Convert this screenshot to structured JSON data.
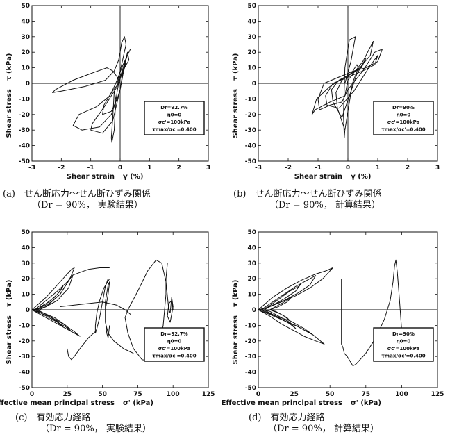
{
  "colors": {
    "ink": "#111111",
    "paper": "#ffffff"
  },
  "chart_data": [
    {
      "id": "a",
      "type": "line",
      "xlabel": "Shear strain",
      "xsym": "γ (%)",
      "ylabel": "Shear stress",
      "ysym": "τ (kPa)",
      "xlim": [
        -3,
        3
      ],
      "ylim": [
        -50,
        50
      ],
      "xticks": [
        -3,
        -2,
        -1,
        0,
        1,
        2,
        3
      ],
      "yticks": [
        -50,
        -40,
        -30,
        -20,
        -10,
        0,
        10,
        20,
        30,
        40,
        50
      ],
      "legend": [
        "Dr=92.7%",
        "η0=0",
        "σc'=100kPa",
        "τmax/σc'=0.400"
      ],
      "caption": [
        "(a)　せん断応力～せん断ひずみ関係",
        "（Dr = 90%， 実験結果）"
      ],
      "series": [
        {
          "x": [
            0,
            -0.1,
            -0.25,
            -0.45,
            -0.9,
            -1.6,
            -2.2,
            -2.3,
            -2.0,
            -1.2,
            -0.5,
            -0.2,
            -0.05,
            0.0,
            0.05,
            0.15,
            0.2,
            0.05,
            -0.1
          ],
          "y": [
            0,
            4,
            8,
            10,
            7,
            2,
            -4,
            -6,
            -5,
            -2,
            2,
            8,
            15,
            20,
            26,
            30,
            25,
            12,
            0
          ]
        },
        {
          "x": [
            -0.15,
            -0.35,
            -0.8,
            -1.4,
            -1.6,
            -1.3,
            -0.7,
            -0.3,
            -0.15,
            -0.1,
            -0.05,
            0.1,
            0.25,
            0.35,
            0.1,
            -0.15
          ],
          "y": [
            0,
            -8,
            -15,
            -20,
            -27,
            -30,
            -28,
            -20,
            -12,
            -5,
            0,
            10,
            18,
            22,
            12,
            0
          ]
        },
        {
          "x": [
            -0.1,
            -0.5,
            -0.95,
            -1.0,
            -0.6,
            -0.25,
            -0.1,
            0.0,
            0.1,
            0.25,
            0.3,
            0.0,
            -0.1
          ],
          "y": [
            -2,
            -14,
            -26,
            -30,
            -32,
            -24,
            -12,
            -4,
            8,
            20,
            15,
            5,
            -2
          ]
        },
        {
          "x": [
            -0.05,
            -0.3,
            -0.55,
            -0.6,
            -0.3,
            -0.1,
            0.0,
            0.1,
            0.2,
            0.1,
            -0.05
          ],
          "y": [
            0,
            -6,
            -14,
            -20,
            -18,
            -10,
            -4,
            6,
            14,
            8,
            0
          ]
        },
        {
          "x": [
            -0.2,
            -0.25,
            -0.3,
            -0.28,
            -0.2,
            -0.15,
            -0.2
          ],
          "y": [
            -5,
            -22,
            -35,
            -38,
            -30,
            -10,
            -5
          ]
        }
      ]
    },
    {
      "id": "b",
      "type": "line",
      "xlabel": "Shear strain",
      "xsym": "γ (%)",
      "ylabel": "Shear stress",
      "ysym": "τ (kPa)",
      "xlim": [
        -3,
        3
      ],
      "ylim": [
        -50,
        50
      ],
      "xticks": [
        -3,
        -2,
        -1,
        0,
        1,
        2,
        3
      ],
      "yticks": [
        -50,
        -40,
        -30,
        -20,
        -10,
        0,
        10,
        20,
        30,
        40,
        50
      ],
      "legend": [
        "Dr=90%",
        "η0=0",
        "σc'=100kPa",
        "τmax/σc'=0.400"
      ],
      "caption": [
        "(b)　せん断応力～せん断ひずみ関係",
        "（Dr = 90%， 計算結果）"
      ],
      "series": [
        {
          "x": [
            -0.1,
            0.1,
            0.25,
            0.05,
            -0.1,
            -0.15,
            -0.12,
            -0.1
          ],
          "y": [
            0,
            14,
            30,
            28,
            10,
            -20,
            -35,
            -30
          ]
        },
        {
          "x": [
            -0.1,
            -0.6,
            -1.1,
            -1.2,
            -1.05,
            -0.6,
            -0.1,
            0.4,
            0.75,
            0.85,
            0.5,
            0.0,
            -0.1
          ],
          "y": [
            -8,
            -12,
            -17,
            -20,
            -10,
            -2,
            4,
            10,
            18,
            27,
            14,
            2,
            -8
          ]
        },
        {
          "x": [
            -0.2,
            -0.6,
            -0.95,
            -1.0,
            -0.8,
            -0.3,
            0.2,
            0.6,
            1.0,
            1.15,
            0.9,
            0.5,
            0.0,
            -0.2
          ],
          "y": [
            -12,
            -14,
            -17,
            -10,
            0,
            4,
            8,
            10,
            14,
            22,
            20,
            8,
            -4,
            -12
          ]
        },
        {
          "x": [
            -0.3,
            -0.7,
            -0.75,
            -0.5,
            0.0,
            0.5,
            0.9,
            1.0,
            0.7,
            0.2,
            -0.3
          ],
          "y": [
            -16,
            -14,
            -8,
            0,
            4,
            8,
            12,
            18,
            10,
            -5,
            -16
          ]
        },
        {
          "x": [
            -0.2,
            -0.5,
            -0.55,
            -0.3,
            0.1,
            0.45,
            0.6,
            0.3,
            -0.2
          ],
          "y": [
            -22,
            -12,
            -4,
            2,
            6,
            10,
            16,
            6,
            -22
          ]
        },
        {
          "x": [
            -0.1,
            -0.35,
            -0.4,
            -0.2,
            0.1,
            0.3,
            0.35,
            0.15,
            -0.1
          ],
          "y": [
            -30,
            -16,
            -6,
            2,
            6,
            12,
            10,
            0,
            -30
          ]
        }
      ]
    },
    {
      "id": "c",
      "type": "line",
      "xlabel": "Effective mean principal stress",
      "xsym": "σ' (kPa)",
      "ylabel": "Shear stress",
      "ysym": "τ (kPa)",
      "xlim": [
        0,
        125
      ],
      "ylim": [
        -50,
        50
      ],
      "xticks": [
        0,
        25,
        50,
        75,
        100,
        125
      ],
      "yticks": [
        -50,
        -40,
        -30,
        -20,
        -10,
        0,
        10,
        20,
        30,
        40,
        50
      ],
      "legend": [
        "Dr=92.7%",
        "η0=0",
        "σc'=100kPa",
        "τmax/σc'=0.400"
      ],
      "caption": [
        "(c)　有効応力経路",
        "（Dr = 90%， 実験結果）"
      ],
      "series": [
        {
          "x": [
            100,
            99,
            97,
            96,
            98,
            100,
            99,
            98,
            97
          ],
          "y": [
            0,
            6,
            4,
            -4,
            -8,
            2,
            8,
            -2,
            0
          ]
        },
        {
          "x": [
            97,
            95,
            92,
            88,
            82,
            75,
            68,
            66,
            68,
            72,
            78,
            84,
            88,
            91,
            93,
            94,
            95,
            95,
            96
          ],
          "y": [
            0,
            18,
            30,
            32,
            25,
            12,
            0,
            -5,
            -15,
            -25,
            -32,
            -33,
            -28,
            -20,
            -10,
            0,
            10,
            20,
            30
          ]
        },
        {
          "x": [
            72,
            65,
            58,
            54,
            52,
            52,
            54,
            55,
            54,
            52,
            52,
            53,
            54,
            55
          ],
          "y": [
            -28,
            -25,
            -20,
            -15,
            -8,
            0,
            10,
            18,
            16,
            5,
            -5,
            -15,
            -18,
            -10
          ]
        },
        {
          "x": [
            55,
            51,
            48,
            46,
            45,
            45,
            46,
            48,
            50,
            52,
            54
          ],
          "y": [
            20,
            14,
            6,
            -2,
            -10,
            -15,
            -12,
            -5,
            5,
            15,
            20
          ]
        },
        {
          "x": [
            45,
            40,
            34,
            30,
            28,
            26,
            25
          ],
          "y": [
            -14,
            -18,
            -25,
            -30,
            -32,
            -30,
            -25
          ]
        },
        {
          "x": [
            0,
            10,
            18,
            24,
            28,
            30,
            27,
            20,
            12,
            5,
            0
          ],
          "y": [
            0,
            8,
            16,
            22,
            26,
            27,
            20,
            10,
            4,
            1,
            0
          ]
        },
        {
          "x": [
            0,
            8,
            16,
            24,
            30,
            34,
            30,
            22,
            14,
            6,
            0
          ],
          "y": [
            0,
            -4,
            -8,
            -12,
            -15,
            -17,
            -14,
            -9,
            -5,
            -2,
            0
          ]
        },
        {
          "x": [
            2,
            10,
            18,
            25,
            29,
            26,
            18,
            10,
            2
          ],
          "y": [
            0,
            6,
            12,
            18,
            22,
            14,
            6,
            2,
            0
          ]
        },
        {
          "x": [
            2,
            10,
            18,
            24,
            28,
            24,
            16,
            8,
            2
          ],
          "y": [
            0,
            -4,
            -8,
            -11,
            -14,
            -10,
            -5,
            -2,
            0
          ]
        },
        {
          "x": [
            4,
            10,
            16,
            20,
            22,
            18,
            12,
            6,
            4
          ],
          "y": [
            0,
            4,
            8,
            12,
            15,
            10,
            5,
            2,
            0
          ]
        },
        {
          "x": [
            4,
            10,
            16,
            20,
            22,
            18,
            12,
            6,
            4
          ],
          "y": [
            0,
            -3,
            -6,
            -9,
            -11,
            -8,
            -4,
            -1,
            0
          ]
        },
        {
          "x": [
            5,
            10,
            15,
            20,
            24,
            28,
            34,
            40,
            48,
            55
          ],
          "y": [
            0,
            2,
            6,
            10,
            16,
            22,
            24,
            26,
            27,
            27
          ]
        },
        {
          "x": [
            20,
            30,
            40,
            50,
            60,
            66,
            70
          ],
          "y": [
            2,
            3,
            4,
            5,
            3,
            0,
            -3
          ]
        }
      ]
    },
    {
      "id": "d",
      "type": "line",
      "xlabel": "Effective mean principal stress",
      "xsym": "σ' (kPa)",
      "ylabel": "Shear stress",
      "ysym": "τ (kPa)",
      "xlim": [
        0,
        125
      ],
      "ylim": [
        -50,
        50
      ],
      "xticks": [
        0,
        25,
        50,
        75,
        100,
        125
      ],
      "yticks": [
        -50,
        -40,
        -30,
        -20,
        -10,
        0,
        10,
        20,
        30,
        40,
        50
      ],
      "legend": [
        "Dr=90%",
        "η0=0",
        "σc'=100kPa",
        "τmax/σc'=0.400"
      ],
      "caption": [
        "(d)　有効応力経路",
        "（Dr = 90%， 計算結果）"
      ],
      "series": [
        {
          "x": [
            100,
            99,
            98,
            97,
            96,
            95,
            94,
            92,
            88,
            82,
            75,
            68,
            66
          ],
          "y": [
            -13,
            0,
            12,
            24,
            32,
            28,
            18,
            6,
            -6,
            -18,
            -28,
            -35,
            -36
          ]
        },
        {
          "x": [
            66,
            62,
            60,
            59,
            58,
            58
          ],
          "y": [
            -36,
            -30,
            -28,
            -24,
            -22,
            20
          ]
        },
        {
          "x": [
            0,
            10,
            20,
            30,
            40,
            47,
            52,
            45,
            36,
            26,
            16,
            8,
            0
          ],
          "y": [
            0,
            8,
            14,
            19,
            23,
            25,
            27,
            20,
            14,
            9,
            5,
            2,
            0
          ]
        },
        {
          "x": [
            0,
            8,
            16,
            24,
            32,
            40,
            46,
            38,
            28,
            18,
            8,
            0
          ],
          "y": [
            0,
            -4,
            -9,
            -13,
            -17,
            -20,
            -22,
            -16,
            -11,
            -7,
            -3,
            0
          ]
        },
        {
          "x": [
            2,
            10,
            18,
            26,
            34,
            40,
            36,
            28,
            18,
            10,
            2
          ],
          "y": [
            0,
            5,
            10,
            15,
            19,
            22,
            16,
            11,
            6,
            3,
            0
          ]
        },
        {
          "x": [
            2,
            10,
            18,
            26,
            34,
            38,
            32,
            22,
            12,
            4,
            2
          ],
          "y": [
            0,
            -3,
            -7,
            -10,
            -14,
            -16,
            -12,
            -7,
            -4,
            -1,
            0
          ]
        },
        {
          "x": [
            4,
            10,
            16,
            22,
            28,
            30,
            26,
            18,
            10,
            4
          ],
          "y": [
            0,
            4,
            8,
            12,
            15,
            17,
            12,
            7,
            3,
            0
          ]
        },
        {
          "x": [
            4,
            10,
            16,
            22,
            26,
            22,
            14,
            8,
            4
          ],
          "y": [
            0,
            -3,
            -6,
            -9,
            -12,
            -8,
            -4,
            -1,
            0
          ]
        },
        {
          "x": [
            8,
            14,
            20,
            24,
            20,
            14,
            8
          ],
          "y": [
            0,
            3,
            6,
            9,
            5,
            2,
            0
          ]
        },
        {
          "x": [
            8,
            14,
            20,
            22,
            18,
            12,
            8
          ],
          "y": [
            0,
            -2,
            -5,
            -7,
            -4,
            -1,
            0
          ]
        }
      ]
    }
  ]
}
